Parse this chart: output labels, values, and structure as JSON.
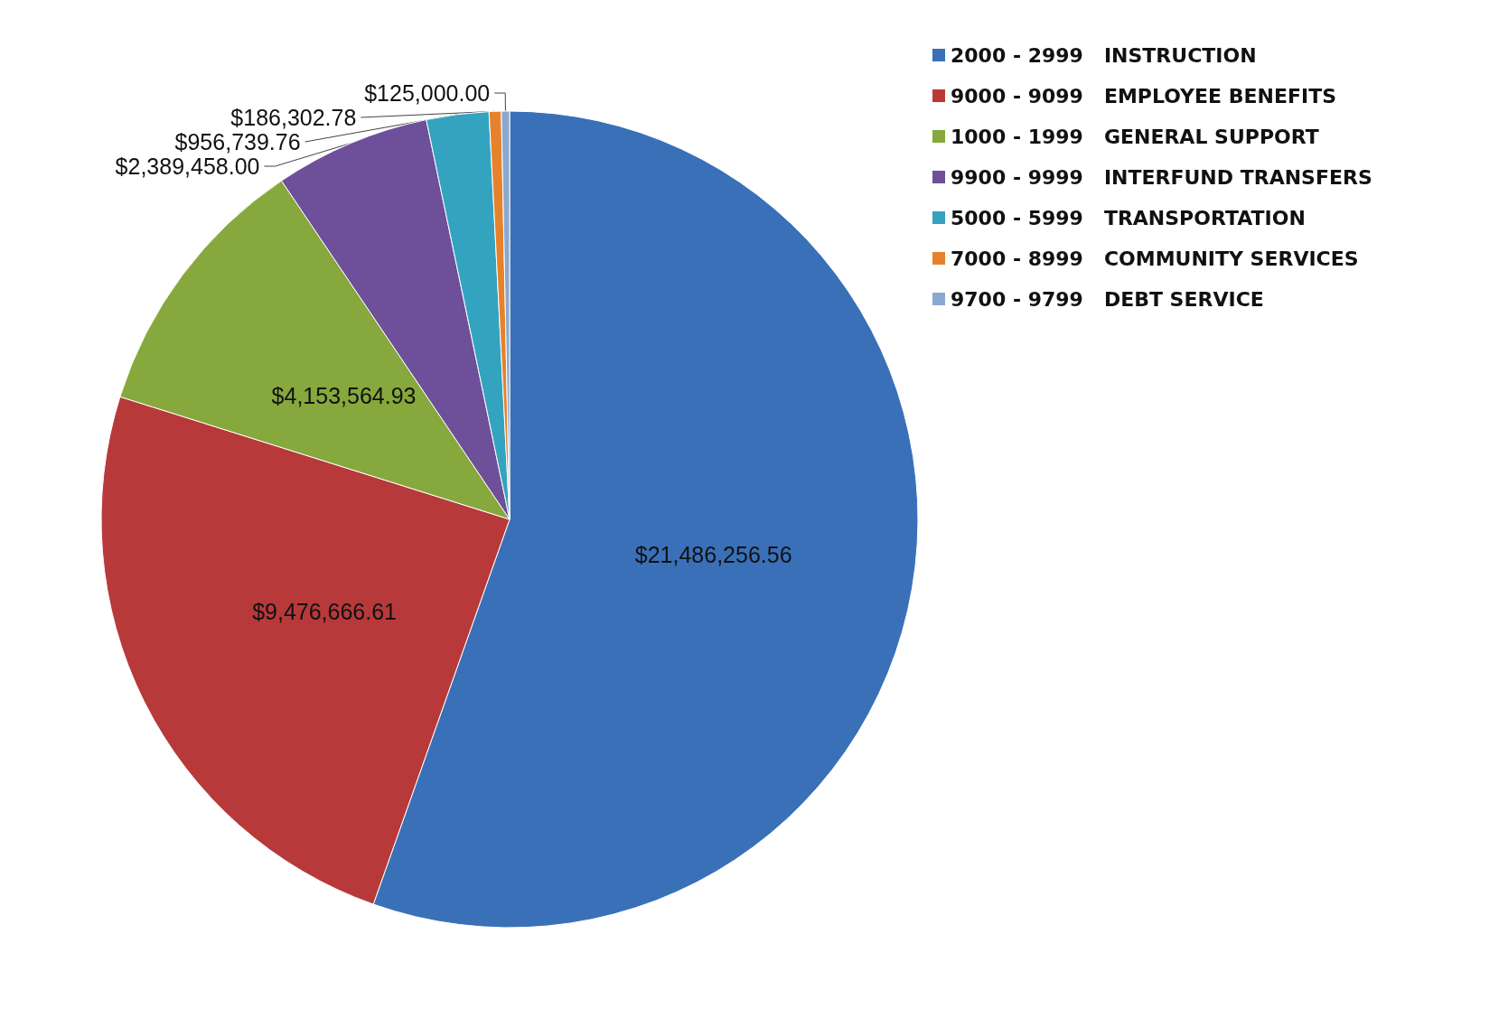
{
  "chart_data": {
    "type": "pie",
    "categories": [
      "2000 - 2999   INSTRUCTION",
      "9000 - 9099   EMPLOYEE BENEFITS",
      "1000 - 1999   GENERAL SUPPORT",
      "9900 - 9999   INTERFUND TRANSFERS",
      "5000 - 5999   TRANSPORTATION",
      "7000 - 8999   COMMUNITY SERVICES",
      "9700 - 9799   DEBT SERVICE"
    ],
    "values": [
      21486256.56,
      9476666.61,
      4153564.93,
      2389458.0,
      956739.76,
      186302.78,
      125000.0
    ],
    "value_labels": [
      "$21,486,256.56",
      "$9,476,666.61",
      "$4,153,564.93",
      "$2,389,458.00",
      "$956,739.76",
      "$186,302.78",
      "$125,000.00"
    ],
    "colors": [
      "#3a70b8",
      "#b8393a",
      "#86a83c",
      "#6e4f9a",
      "#33a3c0",
      "#e6822c",
      "#8aa8d0"
    ],
    "legend": "top right"
  }
}
